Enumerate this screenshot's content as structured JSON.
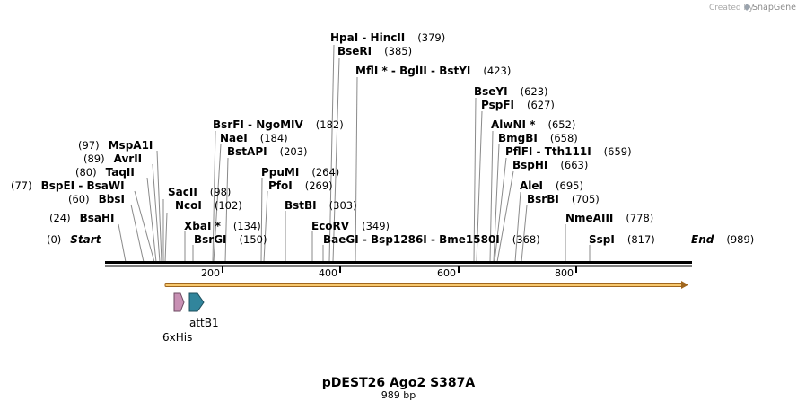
{
  "credit": {
    "text": "Created by",
    "brand": "SnapGene"
  },
  "plasmid": {
    "name": "pDEST26 Ago2 S387A",
    "length_label": "989 bp"
  },
  "ruler": {
    "ticks": [
      "200",
      "400",
      "600",
      "800"
    ]
  },
  "features": [
    {
      "label": "6xHis",
      "color": "#c890b4"
    },
    {
      "label": "attB1",
      "color": "#31859c"
    }
  ],
  "sites": [
    {
      "pos": "(379)",
      "name": "HpaI  - HincII"
    },
    {
      "pos": "(385)",
      "name": "BseRI"
    },
    {
      "pos": "(423)",
      "name": "MflI * - BglII  - BstYI"
    },
    {
      "pos": "(623)",
      "name": "BseYI"
    },
    {
      "pos": "(627)",
      "name": "PspFI"
    },
    {
      "pos": "(652)",
      "name": "AlwNI *"
    },
    {
      "pos": "(658)",
      "name": "BmgBI"
    },
    {
      "pos": "(659)",
      "name": "PflFI  - Tth111I"
    },
    {
      "pos": "(663)",
      "name": "BspHI"
    },
    {
      "pos": "(695)",
      "name": "AleI"
    },
    {
      "pos": "(705)",
      "name": "BsrBI"
    },
    {
      "pos": "(778)",
      "name": "NmeAIII"
    },
    {
      "pos": "(817)",
      "name": "SspI"
    },
    {
      "pos": "(989)",
      "name": "End"
    },
    {
      "pos": "(182)",
      "name": "BsrFI  - NgoMIV"
    },
    {
      "pos": "(184)",
      "name": "NaeI"
    },
    {
      "pos": "(203)",
      "name": "BstAPI"
    },
    {
      "pos": "(264)",
      "name": "PpuMI"
    },
    {
      "pos": "(269)",
      "name": "PfoI"
    },
    {
      "pos": "(303)",
      "name": "BstBI"
    },
    {
      "pos": "(349)",
      "name": "EcoRV"
    },
    {
      "pos": "(368)",
      "name": "BaeGI  - Bsp1286I  - Bme1580I"
    },
    {
      "pos": "(97)",
      "name": "MspA1I"
    },
    {
      "pos": "(89)",
      "name": "AvrII"
    },
    {
      "pos": "(80)",
      "name": "TaqII"
    },
    {
      "pos": "(77)",
      "name": "BspEI  - BsaWI"
    },
    {
      "pos": "(60)",
      "name": "BbsI"
    },
    {
      "pos": "(24)",
      "name": "BsaHI"
    },
    {
      "pos": "(0)",
      "name": "Start"
    },
    {
      "pos": "(98)",
      "name": "SacII"
    },
    {
      "pos": "(102)",
      "name": "NcoI"
    },
    {
      "pos": "(134)",
      "name": "XbaI *"
    },
    {
      "pos": "(150)",
      "name": "BsrGI"
    }
  ]
}
